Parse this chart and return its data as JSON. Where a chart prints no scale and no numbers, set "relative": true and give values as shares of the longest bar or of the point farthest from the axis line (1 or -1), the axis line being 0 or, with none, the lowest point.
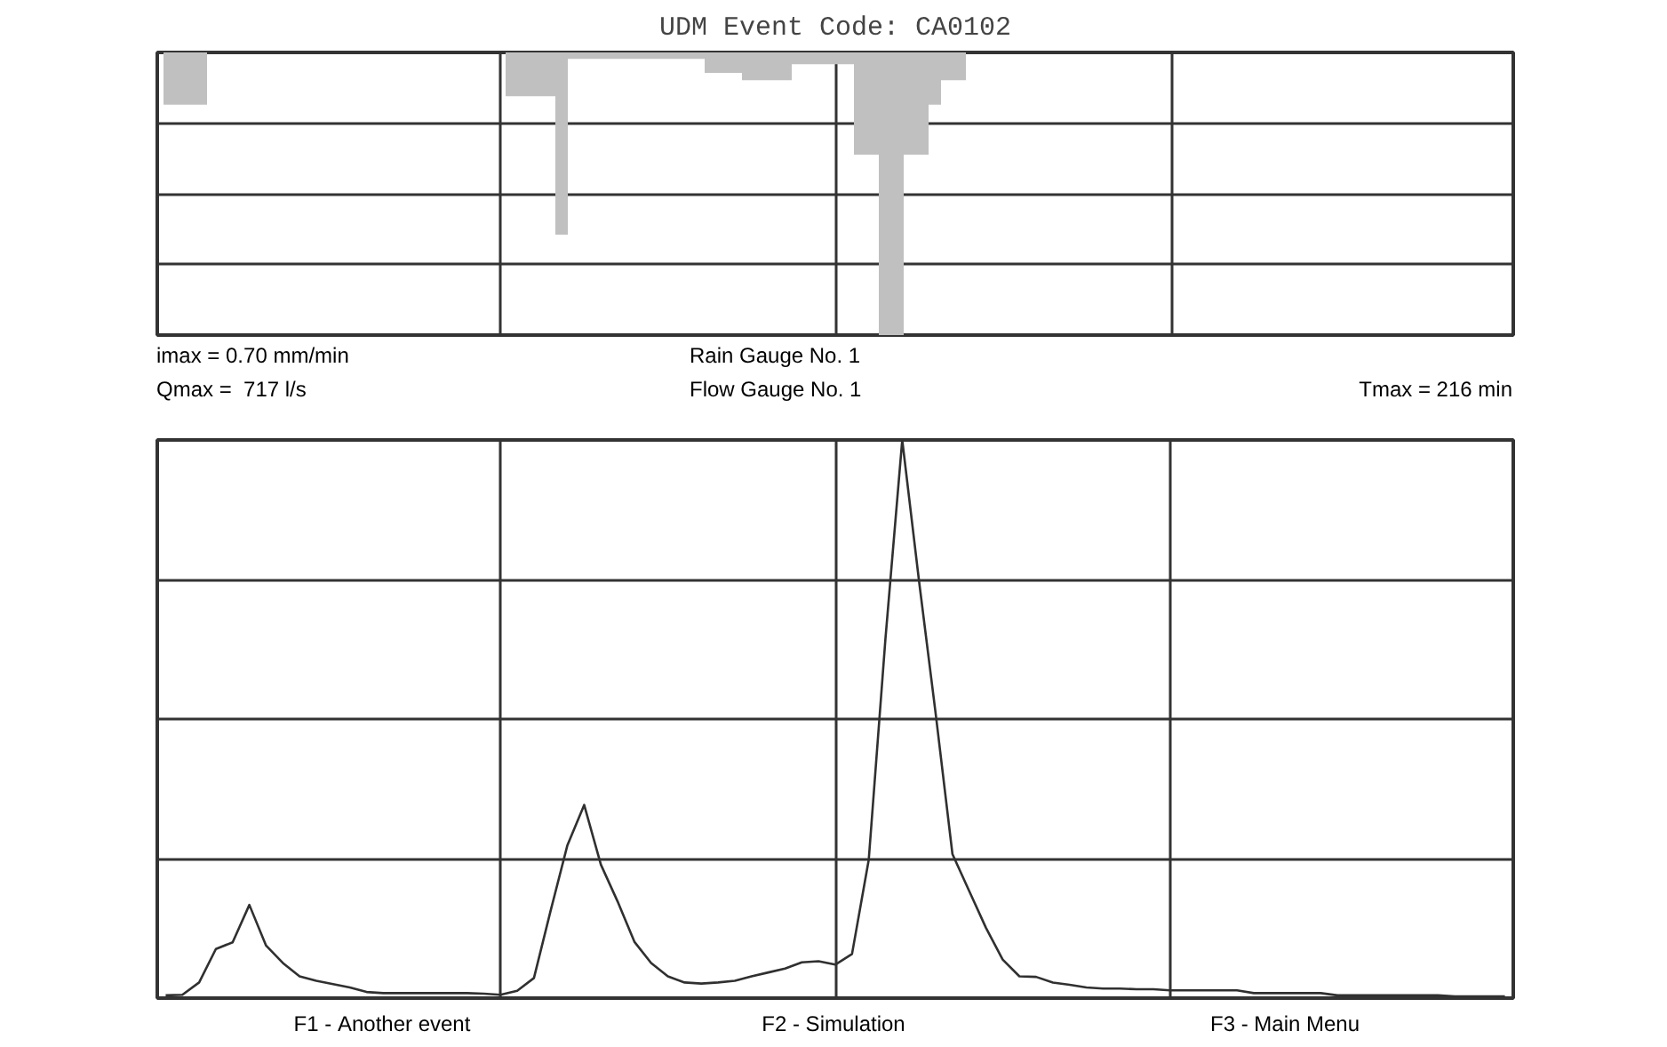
{
  "chart_data": [
    {
      "type": "area",
      "title": "UDM Event Code: CA0102",
      "relative": true,
      "grid": true,
      "color": "#c0c0c0",
      "categories": [
        null,
        null,
        null,
        null,
        null,
        null,
        null,
        null,
        null,
        null,
        null,
        null,
        null,
        null,
        null,
        null,
        null,
        null,
        null,
        null,
        null,
        null,
        null,
        null,
        null,
        null,
        null,
        null,
        null,
        null,
        null,
        null,
        null,
        null,
        null,
        null,
        null,
        null,
        null,
        null,
        null,
        null,
        null,
        null,
        null,
        null,
        null,
        null,
        null,
        null,
        null,
        null,
        null,
        null,
        null,
        null,
        null,
        null,
        null,
        null,
        null,
        null,
        null,
        null,
        null,
        null,
        null,
        null,
        null,
        null,
        null,
        null,
        null,
        null,
        null,
        null,
        null,
        null,
        null,
        null,
        null,
        null,
        null,
        null,
        null,
        null,
        null,
        null,
        null,
        null,
        null,
        null,
        null,
        null,
        null,
        null,
        null,
        null,
        null,
        null,
        null,
        null,
        null,
        null,
        null,
        null,
        null,
        null,
        null
      ],
      "values": [
        -0.185,
        -0.185,
        -0.185,
        -0.185,
        0,
        0,
        0,
        0,
        0,
        0,
        0,
        0,
        0,
        0,
        0,
        0,
        0,
        0,
        0,
        0,
        0,
        0,
        0,
        0,
        0,
        0,
        0,
        0,
        -0.155,
        -0.155,
        -0.155,
        -0.155,
        -0.645,
        -0.023,
        -0.023,
        -0.023,
        -0.023,
        -0.023,
        -0.023,
        -0.023,
        -0.023,
        -0.023,
        -0.023,
        -0.023,
        -0.072,
        -0.072,
        -0.072,
        -0.098,
        -0.098,
        -0.098,
        -0.098,
        -0.042,
        -0.042,
        -0.042,
        -0.042,
        -0.042,
        -0.362,
        -0.362,
        -1,
        -1,
        -0.362,
        -0.362,
        -0.185,
        -0.098,
        -0.098,
        0,
        0,
        0,
        0,
        0,
        0,
        0,
        0,
        0,
        0,
        0,
        0,
        0,
        0,
        0,
        0,
        0,
        0,
        0,
        0,
        0,
        0,
        0,
        0,
        0,
        0,
        0,
        0,
        0,
        0,
        0,
        0,
        0,
        0,
        0,
        0,
        0,
        0,
        0,
        0,
        0,
        0,
        0,
        0
      ],
      "annotations": [
        "imax = 0.70 mm/min",
        "Rain Gauge No. 1"
      ]
    },
    {
      "type": "line",
      "relative": true,
      "grid": true,
      "color": "#303030",
      "line_style": "solid",
      "categories": [
        null,
        null,
        null,
        null,
        null,
        null,
        null,
        null,
        null,
        null,
        null,
        null,
        null,
        null,
        null,
        null,
        null,
        null,
        null,
        null,
        null,
        null,
        null,
        null,
        null,
        null,
        null,
        null,
        null,
        null,
        null,
        null,
        null,
        null,
        null,
        null,
        null,
        null,
        null,
        null,
        null,
        null,
        null,
        null,
        null,
        null,
        null,
        null,
        null,
        null,
        null,
        null,
        null,
        null,
        null,
        null,
        null,
        null,
        null,
        null,
        null,
        null,
        null,
        null,
        null,
        null,
        null,
        null,
        null,
        null,
        null,
        null,
        null,
        null,
        null,
        null,
        null,
        null,
        null,
        null,
        null
      ],
      "values": [
        0.005,
        0.006,
        0.028,
        0.088,
        0.1,
        0.167,
        0.094,
        0.063,
        0.039,
        0.031,
        0.025,
        0.019,
        0.011,
        0.009,
        0.009,
        0.009,
        0.009,
        0.009,
        0.009,
        0.008,
        0.006,
        0.013,
        0.036,
        0.157,
        0.274,
        0.346,
        0.239,
        0.173,
        0.101,
        0.063,
        0.039,
        0.028,
        0.026,
        0.028,
        0.031,
        0.039,
        0.046,
        0.053,
        0.064,
        0.066,
        0.06,
        0.079,
        0.248,
        0.645,
        1,
        0.748,
        0.509,
        0.258,
        0.192,
        0.126,
        0.069,
        0.039,
        0.038,
        0.028,
        0.024,
        0.019,
        0.017,
        0.017,
        0.016,
        0.016,
        0.014,
        0.014,
        0.014,
        0.014,
        0.014,
        0.009,
        0.009,
        0.009,
        0.009,
        0.009,
        0.005,
        0.005,
        0.005,
        0.005,
        0.005,
        0.005,
        0.005,
        0.003,
        0.003,
        0.003,
        0.003
      ],
      "annotations": [
        "Qmax =  717 l/s",
        "Flow Gauge No. 1",
        "Tmax = 216 min",
        "F1 - Another event",
        "F2 - Simulation",
        "F3 - Main Menu"
      ]
    }
  ]
}
